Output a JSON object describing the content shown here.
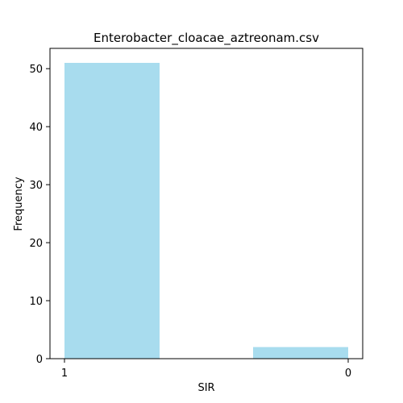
{
  "chart_data": {
    "type": "bar",
    "title": "Enterobacter_cloacae_aztreonam.csv",
    "xlabel": "SIR",
    "ylabel": "Frequency",
    "categories": [
      "1",
      "0"
    ],
    "values": [
      51,
      2
    ],
    "ylim": [
      0,
      53.5
    ],
    "yticks": [
      0,
      10,
      20,
      30,
      40,
      50
    ],
    "grid": false,
    "bar_color": "#a8dcee"
  }
}
